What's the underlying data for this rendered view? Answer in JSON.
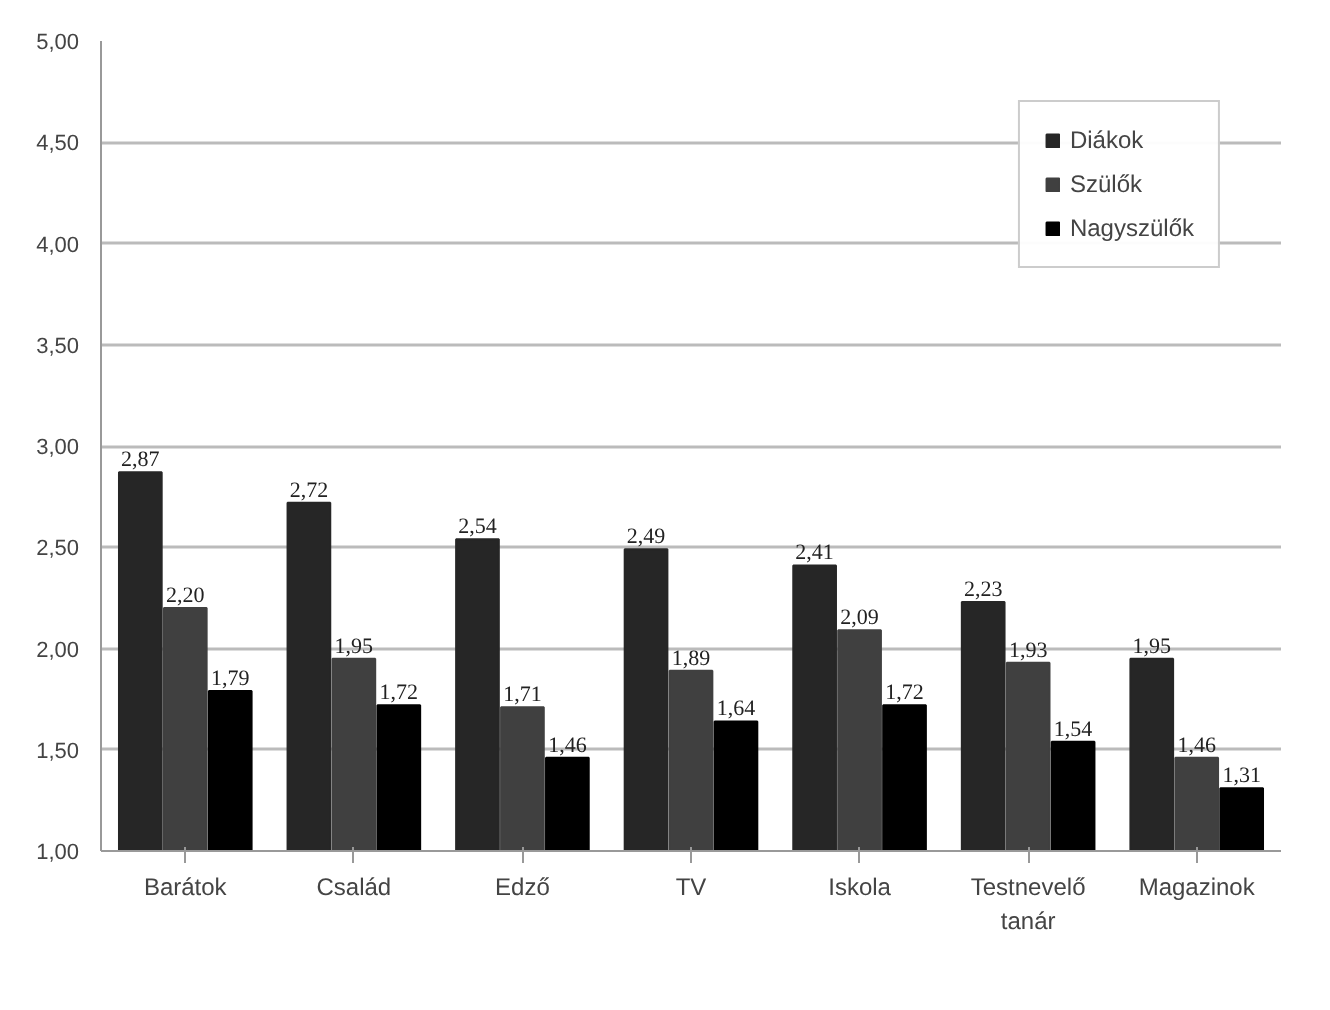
{
  "chart_data": {
    "type": "bar",
    "categories": [
      "Barátok",
      "Család",
      "Edző",
      "TV",
      "Iskola",
      "Testnevelő tanár",
      "Magazinok"
    ],
    "series": [
      {
        "name": "Diákok",
        "color": "#262626",
        "values": [
          2.87,
          2.72,
          2.54,
          2.49,
          2.41,
          2.23,
          1.95
        ],
        "value_labels": [
          "2,87",
          "2,72",
          "2,54",
          "2,49",
          "2,41",
          "2,23",
          "1,95"
        ]
      },
      {
        "name": "Szülők",
        "color": "#404040",
        "values": [
          2.2,
          1.95,
          1.71,
          1.89,
          2.09,
          1.93,
          1.46
        ],
        "value_labels": [
          "2,20",
          "1,95",
          "1,71",
          "1,89",
          "2,09",
          "1,93",
          "1,46"
        ]
      },
      {
        "name": "Nagyszülők",
        "color": "#000000",
        "values": [
          1.79,
          1.72,
          1.46,
          1.64,
          1.72,
          1.54,
          1.31
        ],
        "value_labels": [
          "1,79",
          "1,72",
          "1,46",
          "1,64",
          "1,72",
          "1,54",
          "1,31"
        ]
      }
    ],
    "ylim": [
      1,
      5
    ],
    "yticks": [
      {
        "value": 1,
        "label": "1,00"
      },
      {
        "value": 1.5,
        "label": "1,50"
      },
      {
        "value": 2,
        "label": "2,00"
      },
      {
        "value": 2.5,
        "label": "2,50"
      },
      {
        "value": 3,
        "label": "3,00"
      },
      {
        "value": 3.5,
        "label": "3,50"
      },
      {
        "value": 4,
        "label": "4,00"
      },
      {
        "value": 4.5,
        "label": "4,50"
      },
      {
        "value": 5,
        "label": "5,00"
      }
    ],
    "grid": "y",
    "legend": "top right"
  }
}
